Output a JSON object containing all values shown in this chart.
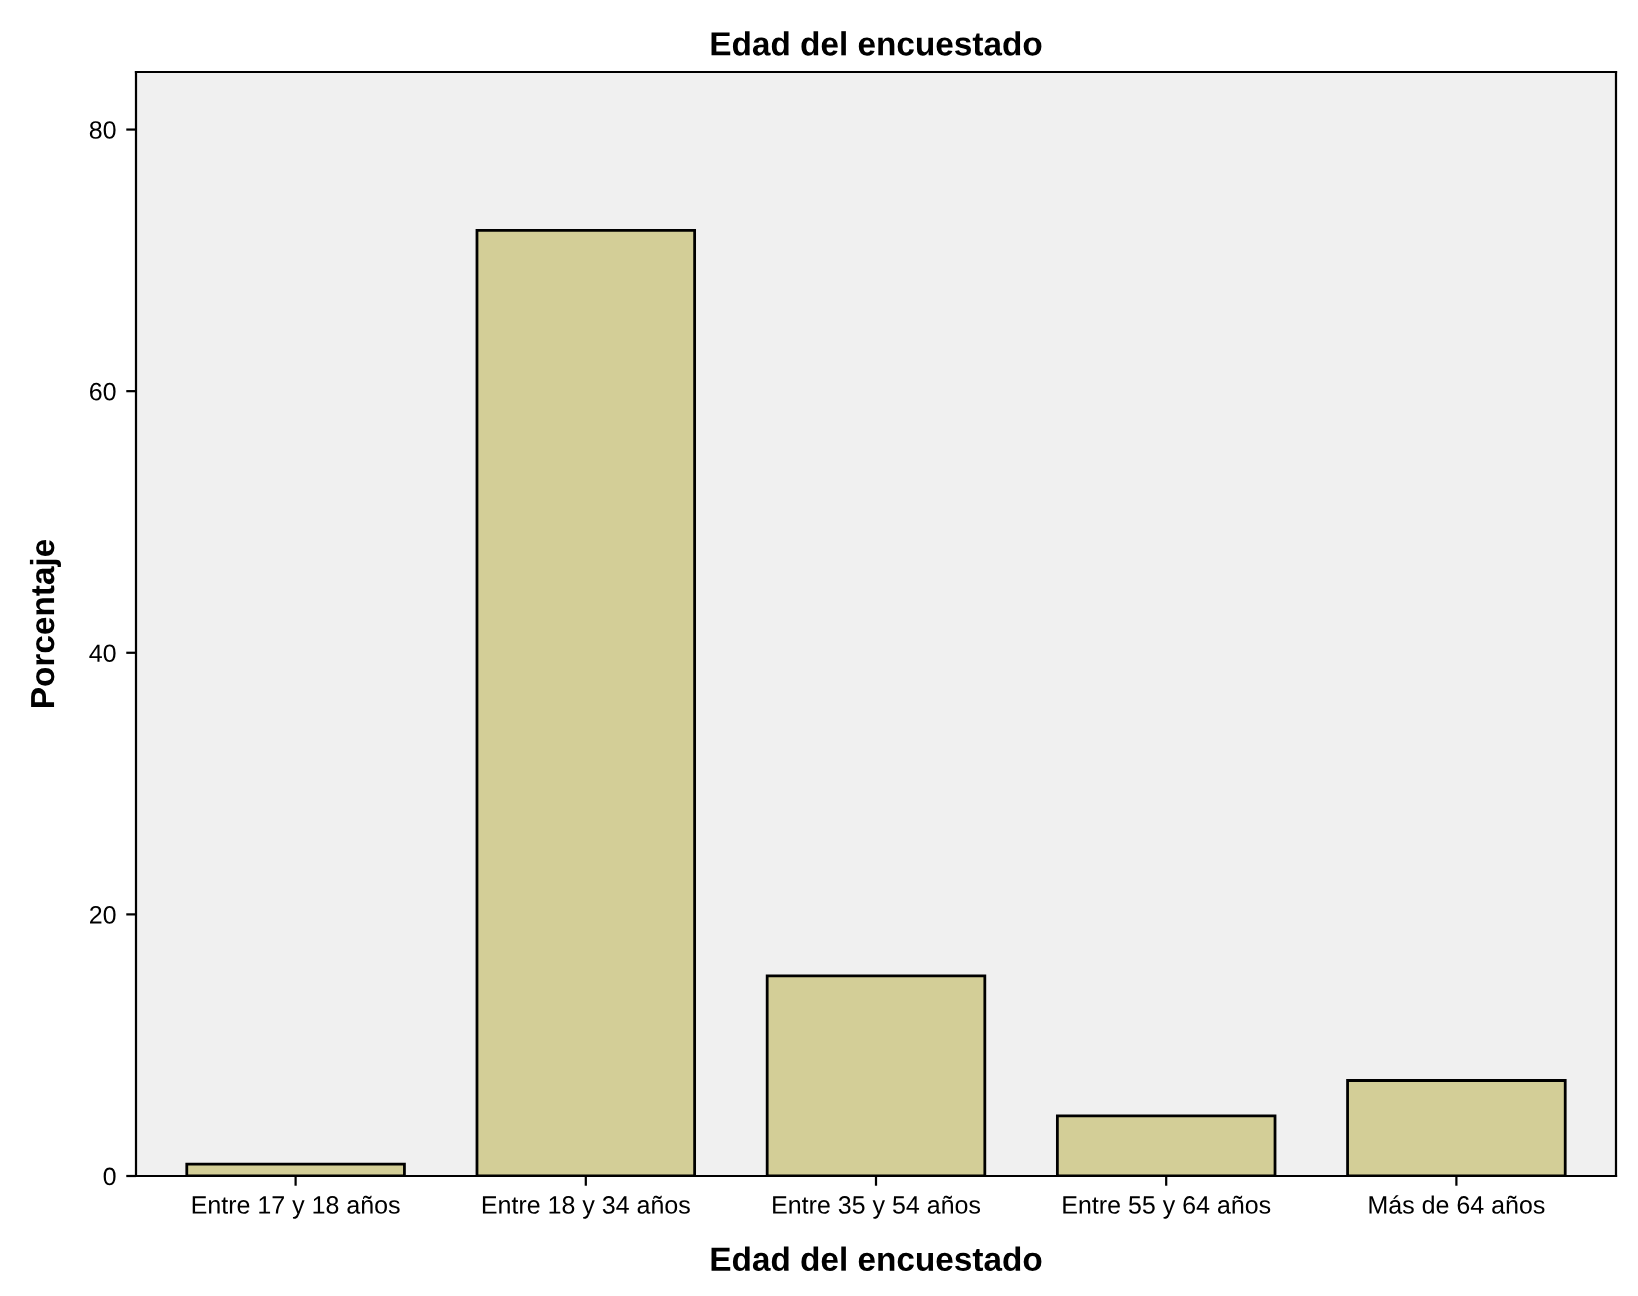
{
  "chart_data": {
    "type": "bar",
    "title": "Edad del encuestado",
    "xlabel": "Edad del encuestado",
    "ylabel": "Porcentaje",
    "categories": [
      "Entre 17 y 18 años",
      "Entre 18 y 34 años",
      "Entre 35 y 54 años",
      "Entre 55 y 64 años",
      "Más de 64 años"
    ],
    "values": [
      0.9,
      72.3,
      15.3,
      4.6,
      7.3
    ],
    "color": "#d3ce97",
    "ylim": [
      0,
      84.4
    ],
    "yticks": [
      0,
      20,
      40,
      60,
      80
    ],
    "grid": false,
    "legend": false
  }
}
